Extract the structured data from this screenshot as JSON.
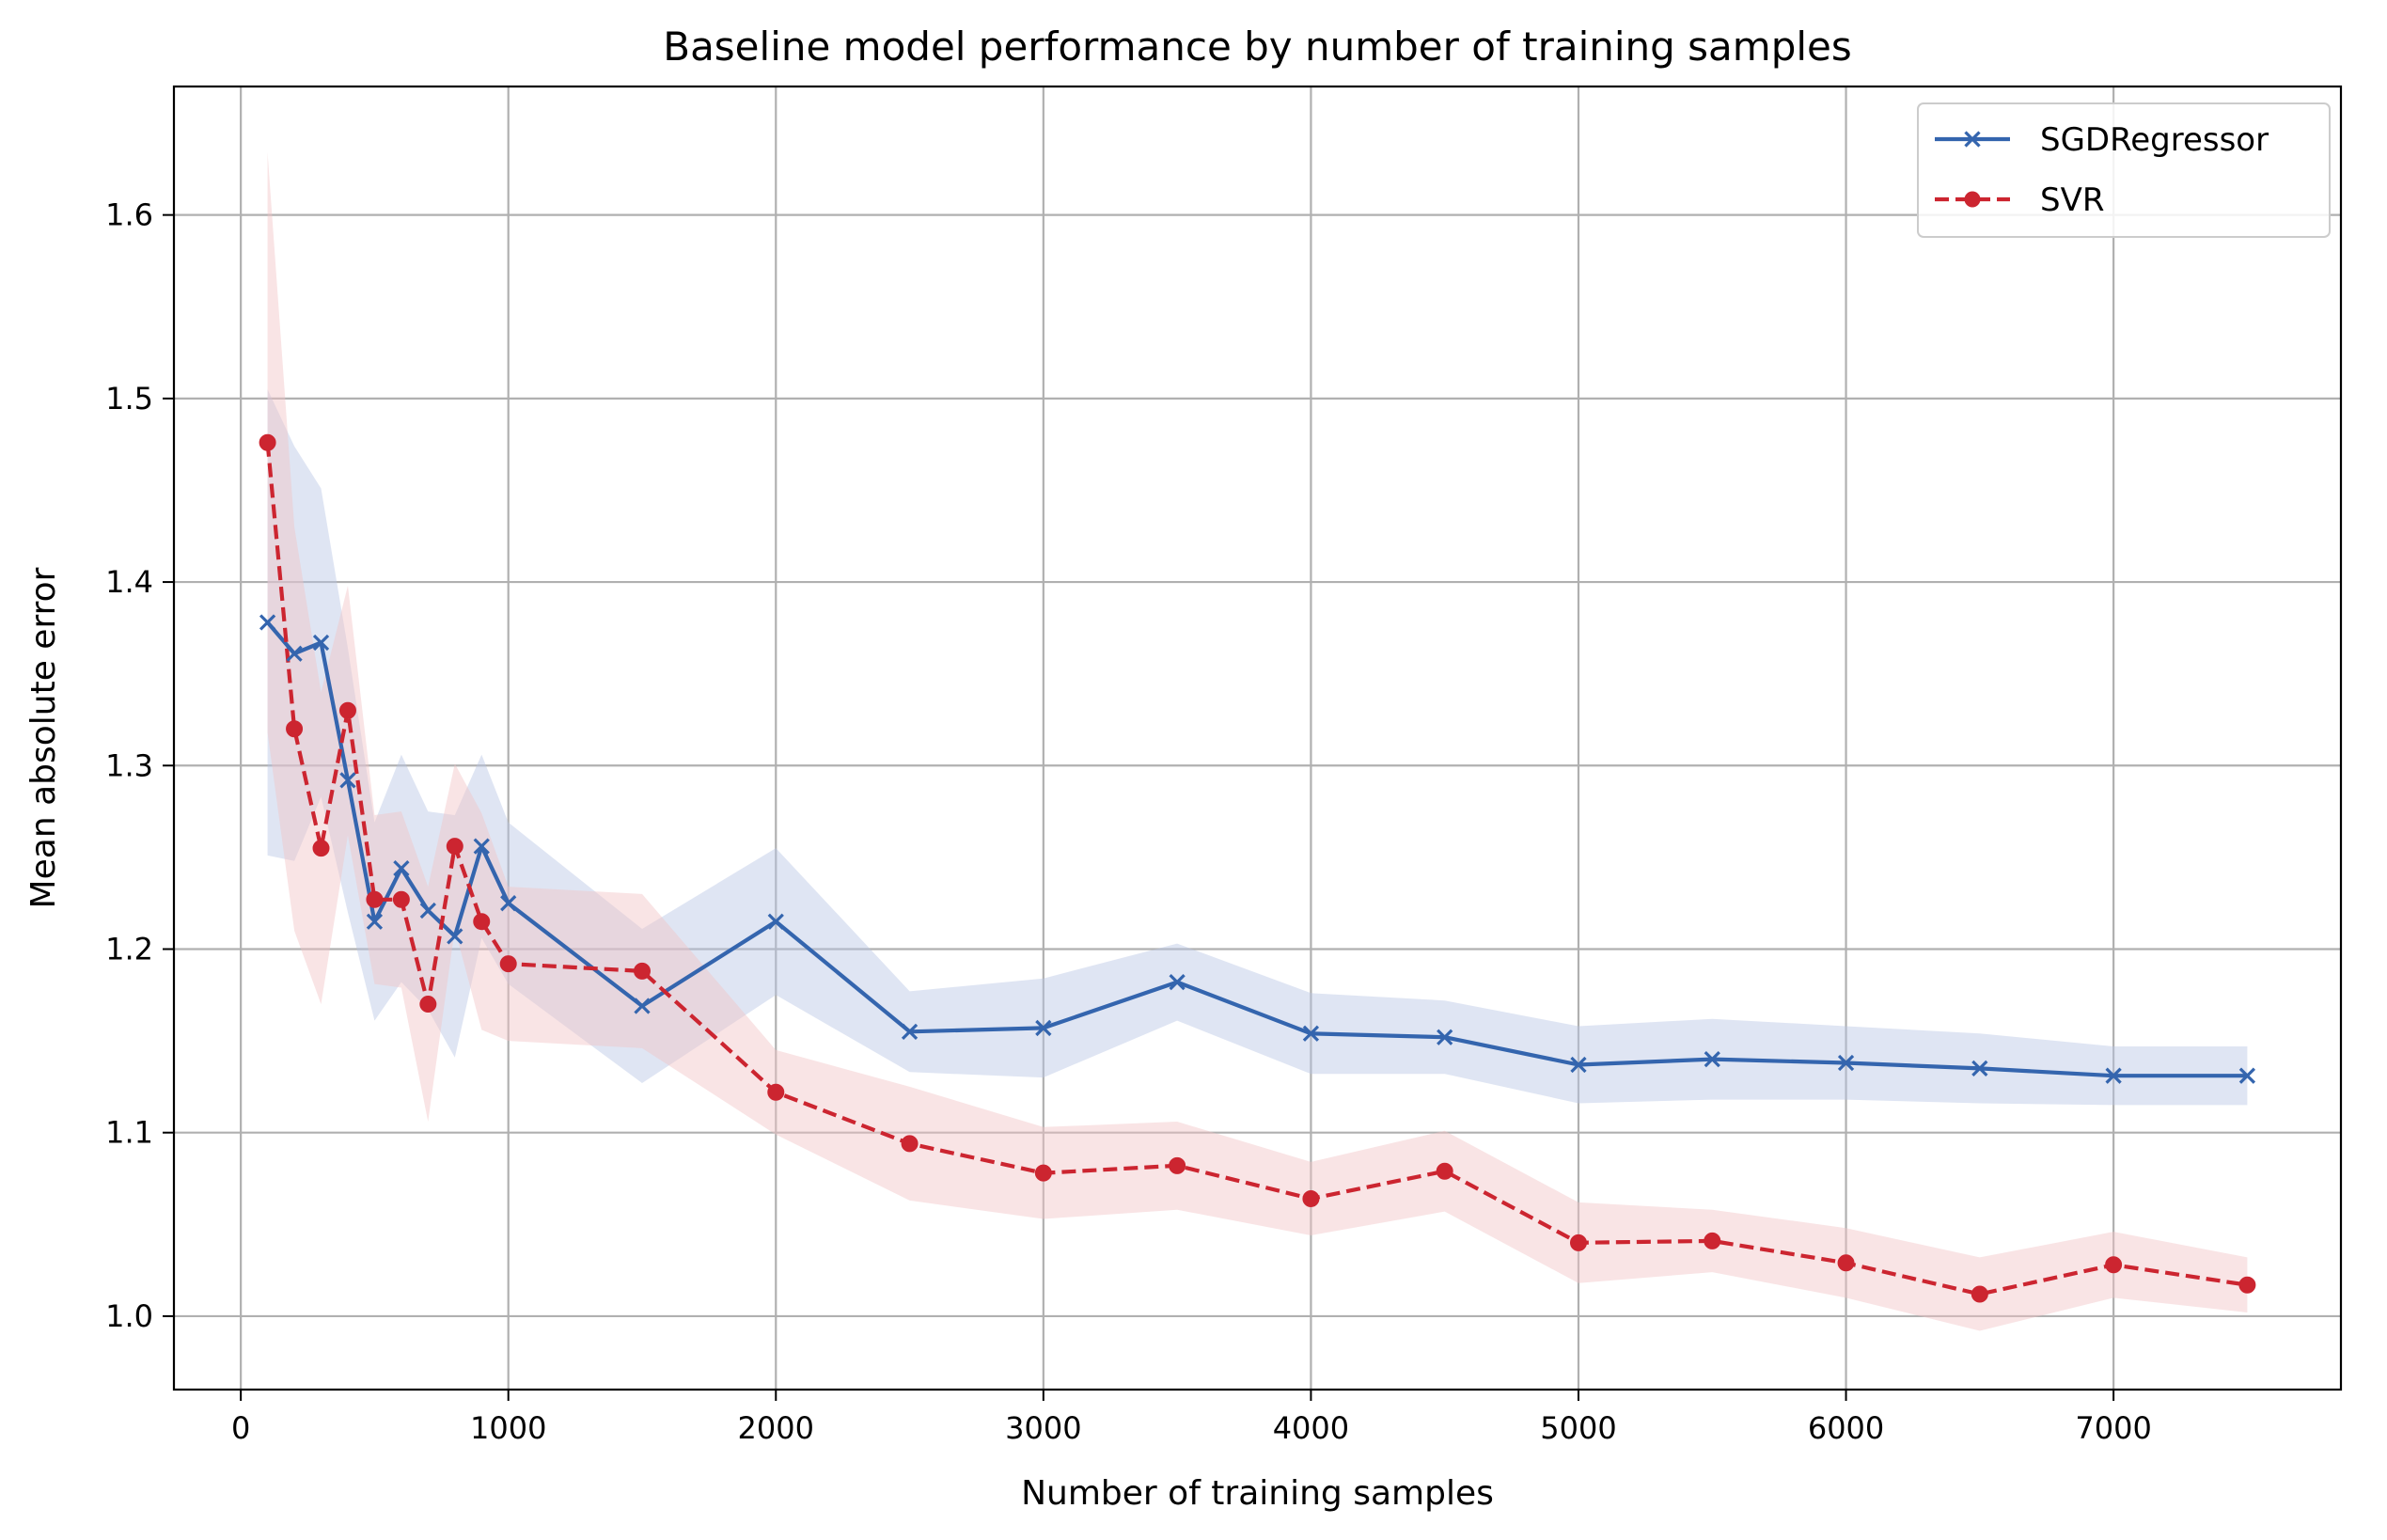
{
  "chart_data": {
    "type": "line",
    "title": "Baseline model performance by number of training samples",
    "xlabel": "Number of training samples",
    "ylabel": "Mean absolute error",
    "xlim": [
      -250,
      7850
    ],
    "ylim": [
      0.96,
      1.67
    ],
    "xticks": [
      0,
      1000,
      2000,
      3000,
      4000,
      5000,
      6000,
      7000
    ],
    "xtick_labels": [
      "0",
      "1000",
      "2000",
      "3000",
      "4000",
      "5000",
      "6000",
      "7000"
    ],
    "yticks": [
      1.0,
      1.1,
      1.2,
      1.3,
      1.4,
      1.5,
      1.6
    ],
    "ytick_labels": [
      "1.0",
      "1.1",
      "1.2",
      "1.3",
      "1.4",
      "1.5",
      "1.6"
    ],
    "grid": true,
    "legend_position": "top-right",
    "x": [
      100,
      200,
      300,
      400,
      500,
      600,
      700,
      800,
      900,
      1000,
      1500,
      2000,
      2500,
      3000,
      3500,
      4000,
      4500,
      5000,
      5500,
      6000,
      6500,
      7000,
      7500
    ],
    "series": [
      {
        "name": "SGDRegressor",
        "color": "#3465ae",
        "band_color": "#b7c6e4",
        "line_style": "solid",
        "marker": "x",
        "values": [
          1.378,
          1.361,
          1.367,
          1.292,
          1.215,
          1.244,
          1.221,
          1.207,
          1.256,
          1.225,
          1.169,
          1.215,
          1.155,
          1.157,
          1.182,
          1.154,
          1.152,
          1.137,
          1.14,
          1.138,
          1.135,
          1.131,
          1.131
        ],
        "lower": [
          1.251,
          1.248,
          1.283,
          1.22,
          1.161,
          1.182,
          1.167,
          1.141,
          1.206,
          1.181,
          1.127,
          1.175,
          1.133,
          1.13,
          1.161,
          1.132,
          1.132,
          1.116,
          1.118,
          1.118,
          1.116,
          1.115,
          1.115
        ],
        "upper": [
          1.505,
          1.474,
          1.451,
          1.364,
          1.269,
          1.306,
          1.275,
          1.273,
          1.306,
          1.269,
          1.211,
          1.255,
          1.177,
          1.184,
          1.203,
          1.176,
          1.172,
          1.158,
          1.162,
          1.158,
          1.154,
          1.147,
          1.147
        ]
      },
      {
        "name": "SVR",
        "color": "#cc2530",
        "band_color": "#f2c4c6",
        "line_style": "dashed",
        "marker": "o",
        "values": [
          1.476,
          1.32,
          1.255,
          1.33,
          1.227,
          1.227,
          1.17,
          1.256,
          1.215,
          1.192,
          1.188,
          1.122,
          1.094,
          1.078,
          1.082,
          1.064,
          1.079,
          1.04,
          1.041,
          1.029,
          1.012,
          1.028,
          1.017
        ],
        "lower": [
          1.318,
          1.21,
          1.17,
          1.262,
          1.181,
          1.179,
          1.106,
          1.211,
          1.156,
          1.15,
          1.146,
          1.099,
          1.063,
          1.053,
          1.058,
          1.044,
          1.057,
          1.018,
          1.024,
          1.01,
          0.992,
          1.01,
          1.002
        ],
        "upper": [
          1.634,
          1.43,
          1.34,
          1.398,
          1.273,
          1.275,
          1.234,
          1.301,
          1.274,
          1.234,
          1.23,
          1.145,
          1.125,
          1.103,
          1.106,
          1.084,
          1.101,
          1.062,
          1.058,
          1.048,
          1.032,
          1.046,
          1.032
        ]
      }
    ]
  }
}
